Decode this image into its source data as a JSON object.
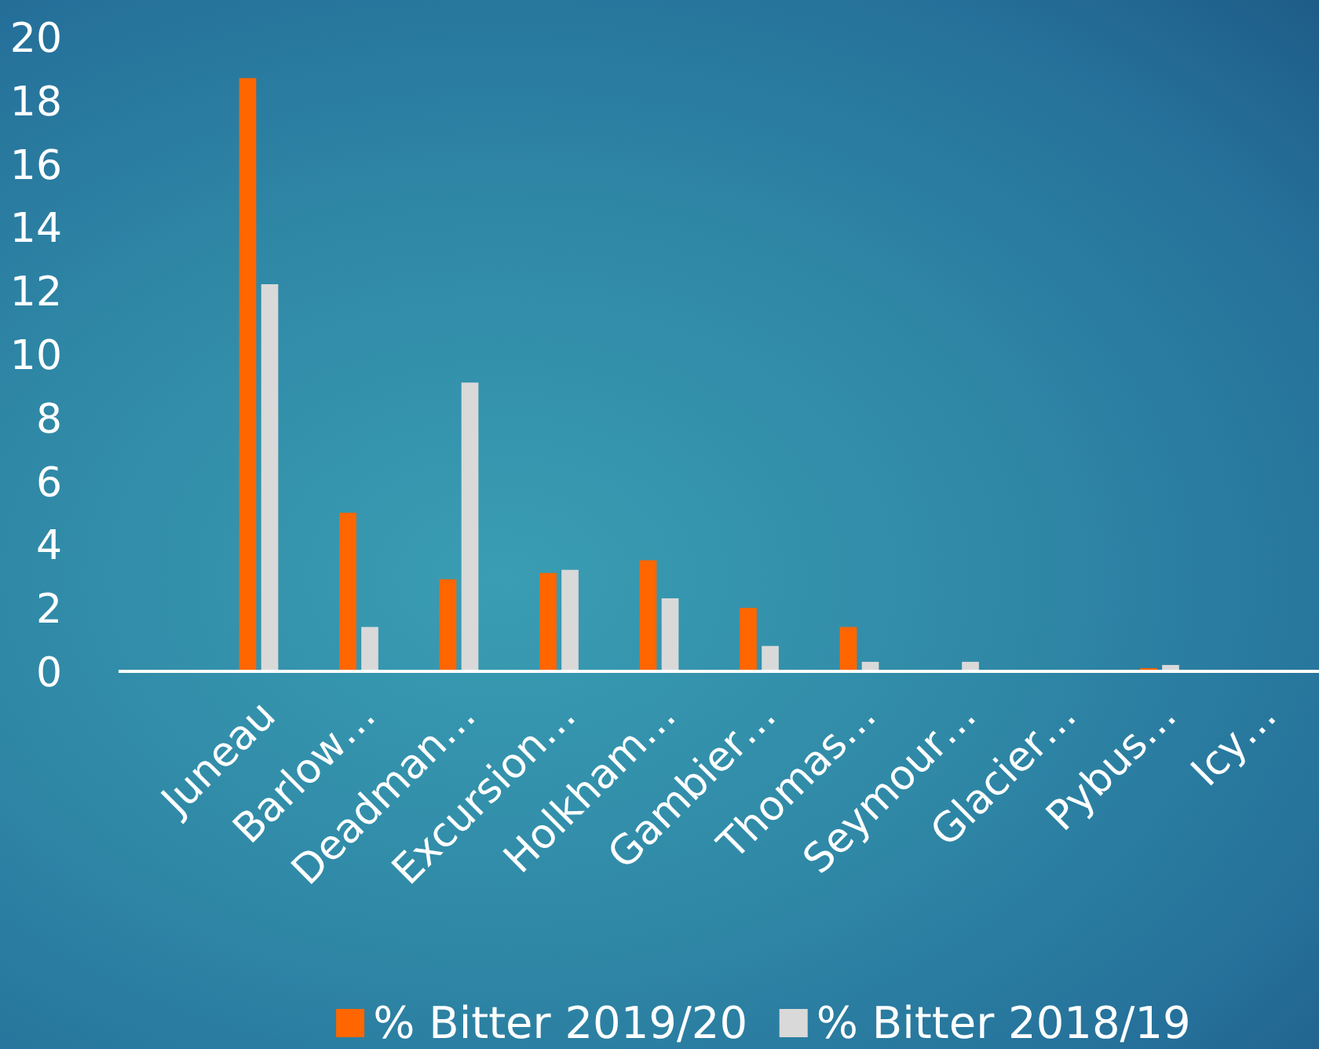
{
  "chart_data": {
    "type": "bar",
    "categories": [
      null,
      "Juneau",
      "Barlow…",
      "Deadman…",
      "Excursion…",
      "Holkham…",
      "Gambier…",
      "Thomas…",
      "Seymour…",
      "Glacier…",
      "Pybus…",
      "Icy…"
    ],
    "series": [
      {
        "name": "% Bitter 2019/20",
        "color": "#ff6600",
        "values": [
          null,
          18.7,
          5.0,
          2.9,
          3.1,
          3.5,
          2.0,
          1.4,
          0,
          0,
          0.1,
          0
        ]
      },
      {
        "name": "% Bitter 2018/19",
        "color": "#d9d9d9",
        "values": [
          null,
          12.2,
          1.4,
          9.1,
          3.2,
          2.3,
          0.8,
          0.3,
          0.3,
          0,
          0.2,
          0
        ]
      }
    ],
    "ylim": [
      0,
      20
    ],
    "yticks": [
      0,
      2,
      4,
      6,
      8,
      10,
      12,
      14,
      16,
      18,
      20
    ],
    "grid": false,
    "legend": "bottom"
  }
}
